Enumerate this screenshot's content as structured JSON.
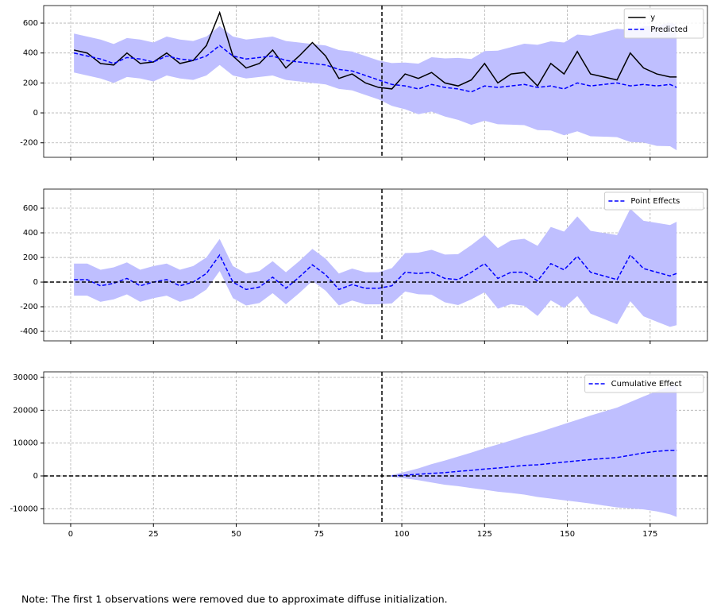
{
  "chart_data": [
    {
      "type": "line",
      "xlim": [
        -8.15,
        192.3
      ],
      "ylim": [
        -297,
        717
      ],
      "yticks": [
        -200,
        0,
        200,
        400,
        600
      ],
      "xticks": [
        0,
        25,
        50,
        75,
        100,
        125,
        150,
        175
      ],
      "grid": true,
      "legend": "upper right",
      "vline": 94,
      "x": [
        1,
        5,
        9,
        13,
        17,
        21,
        25,
        29,
        33,
        37,
        41,
        45,
        49,
        53,
        57,
        61,
        65,
        69,
        73,
        77,
        81,
        85,
        89,
        93,
        97,
        101,
        105,
        109,
        113,
        117,
        121,
        125,
        129,
        133,
        137,
        141,
        145,
        149,
        153,
        157,
        161,
        165,
        169,
        173,
        177,
        181,
        183
      ],
      "band": {
        "color": "#bfbfff",
        "lower": [
          270,
          250,
          230,
          200,
          240,
          230,
          210,
          250,
          230,
          220,
          250,
          320,
          250,
          230,
          240,
          250,
          220,
          210,
          200,
          190,
          160,
          150,
          120,
          90,
          47,
          24,
          -9,
          8,
          -24,
          -47,
          -80,
          -53,
          -76,
          -79,
          -82,
          -115,
          -118,
          -150,
          -123,
          -156,
          -159,
          -162,
          -195,
          -198,
          -221,
          -223,
          -250
        ],
        "upper": [
          530,
          510,
          490,
          460,
          500,
          490,
          470,
          510,
          490,
          480,
          510,
          580,
          510,
          490,
          500,
          510,
          480,
          470,
          460,
          450,
          420,
          410,
          380,
          350,
          333,
          336,
          329,
          372,
          364,
          367,
          360,
          413,
          416,
          439,
          462,
          455,
          478,
          470,
          523,
          516,
          539,
          562,
          555,
          578,
          581,
          603,
          590
        ]
      },
      "series": [
        {
          "name": "y",
          "color": "#000000",
          "dashed": false,
          "values": [
            420,
            400,
            330,
            320,
            400,
            330,
            340,
            400,
            330,
            350,
            450,
            670,
            380,
            300,
            330,
            420,
            300,
            380,
            470,
            380,
            230,
            260,
            200,
            170,
            160,
            260,
            230,
            270,
            200,
            180,
            220,
            330,
            200,
            260,
            270,
            180,
            330,
            260,
            410,
            260,
            240,
            220,
            400,
            300,
            260,
            240,
            240
          ]
        },
        {
          "name": "Predicted",
          "color": "#0000ff",
          "dashed": true,
          "values": [
            400,
            380,
            360,
            330,
            370,
            360,
            340,
            380,
            360,
            350,
            380,
            450,
            380,
            360,
            370,
            380,
            350,
            340,
            330,
            320,
            290,
            280,
            250,
            220,
            190,
            180,
            160,
            190,
            170,
            160,
            140,
            180,
            170,
            180,
            190,
            170,
            180,
            160,
            200,
            180,
            190,
            200,
            180,
            190,
            180,
            190,
            170
          ]
        }
      ]
    },
    {
      "type": "line",
      "xlim": [
        -8.15,
        192.3
      ],
      "ylim": [
        -477,
        755
      ],
      "yticks": [
        -400,
        -200,
        0,
        200,
        400,
        600
      ],
      "xticks": [
        0,
        25,
        50,
        75,
        100,
        125,
        150,
        175
      ],
      "grid": true,
      "legend": "upper right",
      "vline": 94,
      "hline": 0,
      "x": [
        1,
        5,
        9,
        13,
        17,
        21,
        25,
        29,
        33,
        37,
        41,
        45,
        49,
        53,
        57,
        61,
        65,
        69,
        73,
        77,
        81,
        85,
        89,
        93,
        97,
        101,
        105,
        109,
        113,
        117,
        121,
        125,
        129,
        133,
        137,
        141,
        145,
        149,
        153,
        157,
        161,
        165,
        169,
        173,
        177,
        181,
        183
      ],
      "band": {
        "color": "#bfbfff",
        "lower": [
          -110,
          -110,
          -160,
          -140,
          -100,
          -160,
          -130,
          -110,
          -160,
          -130,
          -60,
          90,
          -130,
          -190,
          -170,
          -90,
          -180,
          -90,
          10,
          -70,
          -190,
          -150,
          -180,
          -180,
          -173,
          -76,
          -99,
          -102,
          -164,
          -187,
          -140,
          -83,
          -216,
          -179,
          -192,
          -275,
          -148,
          -210,
          -113,
          -256,
          -299,
          -342,
          -155,
          -278,
          -321,
          -363,
          -350
        ],
        "upper": [
          150,
          150,
          100,
          120,
          160,
          100,
          130,
          150,
          100,
          130,
          200,
          350,
          130,
          70,
          90,
          170,
          80,
          170,
          270,
          190,
          70,
          110,
          80,
          80,
          113,
          236,
          239,
          262,
          224,
          227,
          300,
          383,
          276,
          339,
          352,
          295,
          448,
          410,
          533,
          416,
          399,
          382,
          595,
          498,
          481,
          463,
          490
        ]
      },
      "series": [
        {
          "name": "Point Effects",
          "color": "#0000ff",
          "dashed": true,
          "values": [
            20,
            20,
            -30,
            -10,
            30,
            -30,
            0,
            20,
            -30,
            0,
            70,
            220,
            0,
            -60,
            -40,
            40,
            -50,
            40,
            140,
            60,
            -60,
            -20,
            -50,
            -50,
            -30,
            80,
            70,
            80,
            30,
            20,
            80,
            150,
            30,
            80,
            80,
            10,
            150,
            100,
            210,
            80,
            50,
            20,
            220,
            110,
            80,
            50,
            70
          ]
        }
      ]
    },
    {
      "type": "line",
      "xlim": [
        -8.15,
        192.3
      ],
      "ylim": [
        -14516,
        31694
      ],
      "yticks": [
        -10000,
        0,
        10000,
        20000,
        30000
      ],
      "xticks": [
        0,
        25,
        50,
        75,
        100,
        125,
        150,
        175
      ],
      "grid": true,
      "legend": "upper right",
      "vline": 94,
      "hline": 0,
      "x": [
        1,
        5,
        9,
        13,
        17,
        21,
        25,
        29,
        33,
        37,
        41,
        45,
        49,
        53,
        57,
        61,
        65,
        69,
        73,
        77,
        81,
        85,
        89,
        93,
        97,
        101,
        105,
        109,
        113,
        117,
        121,
        125,
        129,
        133,
        137,
        141,
        145,
        149,
        153,
        157,
        161,
        165,
        169,
        173,
        177,
        181,
        183
      ],
      "band": {
        "color": "#bfbfff",
        "lower": [
          null,
          null,
          null,
          null,
          null,
          null,
          null,
          null,
          null,
          null,
          null,
          null,
          null,
          null,
          null,
          null,
          null,
          null,
          null,
          null,
          null,
          null,
          null,
          null,
          -300,
          -750,
          -1300,
          -2000,
          -2700,
          -3100,
          -3700,
          -4200,
          -4800,
          -5200,
          -5700,
          -6400,
          -6900,
          -7400,
          -7900,
          -8400,
          -9000,
          -9600,
          -9900,
          -10200,
          -10800,
          -11700,
          -12500
        ],
        "upper": [
          null,
          null,
          null,
          null,
          null,
          null,
          null,
          null,
          null,
          null,
          null,
          null,
          null,
          null,
          null,
          null,
          null,
          null,
          null,
          null,
          null,
          null,
          null,
          null,
          300,
          1250,
          2300,
          3600,
          4700,
          5900,
          7100,
          8400,
          9600,
          10800,
          12100,
          13200,
          14500,
          15800,
          17100,
          18400,
          19600,
          20800,
          22500,
          24200,
          25800,
          27300,
          28100
        ]
      },
      "series": [
        {
          "name": "Cumulative Effect",
          "color": "#0000ff",
          "dashed": true,
          "values": [
            null,
            null,
            null,
            null,
            null,
            null,
            null,
            null,
            null,
            null,
            null,
            null,
            null,
            null,
            null,
            null,
            null,
            null,
            null,
            null,
            null,
            null,
            null,
            null,
            0,
            250,
            500,
            800,
            1000,
            1400,
            1700,
            2100,
            2400,
            2800,
            3200,
            3400,
            3800,
            4200,
            4600,
            5000,
            5300,
            5600,
            6300,
            7000,
            7500,
            7800,
            7800
          ]
        }
      ]
    }
  ],
  "note": "Note: The first 1 observations were removed due to approximate diffuse initialization."
}
